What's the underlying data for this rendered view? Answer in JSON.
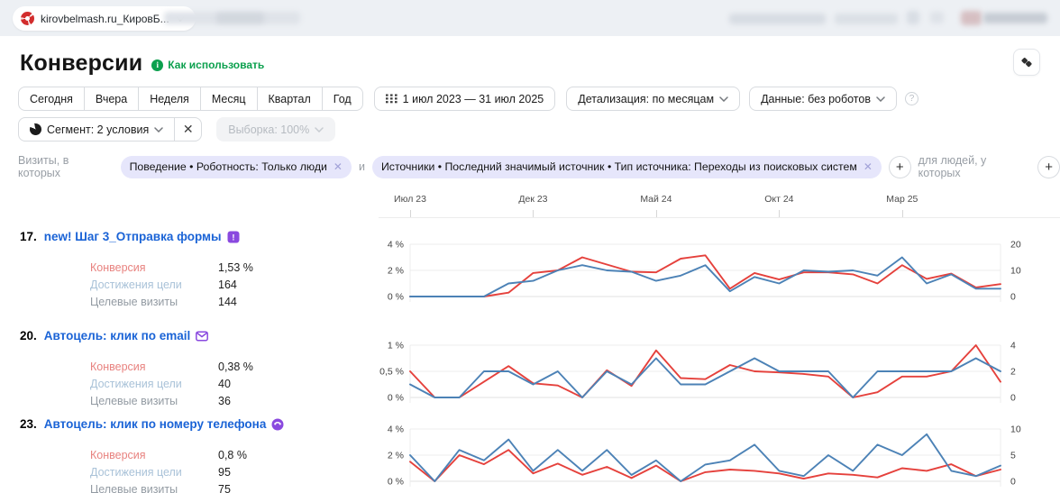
{
  "topbar": {
    "counter_label": "kirovbelmash.ru_КировБ..."
  },
  "header": {
    "title": "Конверсии",
    "help_link": "Как использовать"
  },
  "toolbar": {
    "periods": [
      "Сегодня",
      "Вчера",
      "Неделя",
      "Месяц",
      "Квартал",
      "Год"
    ],
    "date_range": "1 июл 2023 — 31 июл 2025",
    "detail_dropdown": "Детализация: по месяцам",
    "data_dropdown": "Данные: без роботов",
    "segment_button": "Сегмент: 2 условия",
    "sampling_dropdown": "Выборка: 100%"
  },
  "segments": {
    "visits_label": "Визиты, в которых",
    "and_label": "и",
    "people_label": "для людей, у которых",
    "chips": [
      "Поведение • Роботность: Только люди",
      "Источники • Последний значимый источник • Тип источника: Переходы из поисковых систем"
    ]
  },
  "x_axis": {
    "total_months": 24,
    "ticks": [
      {
        "label": "Июл 23",
        "month_index": 0
      },
      {
        "label": "Дек 23",
        "month_index": 5
      },
      {
        "label": "Май 24",
        "month_index": 10
      },
      {
        "label": "Окт 24",
        "month_index": 15
      },
      {
        "label": "Мар 25",
        "month_index": 20
      }
    ]
  },
  "rows": [
    {
      "num": "17.",
      "title": "new! Шаг 3_Отправка формы",
      "icon": "form-goal-icon",
      "metrics": [
        {
          "label": "Конверсия",
          "value": "1,53 %"
        },
        {
          "label": "Достижения цели",
          "value": "164"
        },
        {
          "label": "Целевые визиты",
          "value": "144"
        }
      ]
    },
    {
      "num": "20.",
      "title": "Автоцель: клик по email",
      "icon": "email-goal-icon",
      "metrics": [
        {
          "label": "Конверсия",
          "value": "0,38 %"
        },
        {
          "label": "Достижения цели",
          "value": "40"
        },
        {
          "label": "Целевые визиты",
          "value": "36"
        }
      ]
    },
    {
      "num": "23.",
      "title": "Автоцель: клик по номеру телефона",
      "icon": "phone-goal-icon",
      "metrics": [
        {
          "label": "Конверсия",
          "value": "0,8 %"
        },
        {
          "label": "Достижения цели",
          "value": "95"
        },
        {
          "label": "Целевые визиты",
          "value": "75"
        }
      ]
    }
  ],
  "chart_data": [
    {
      "type": "line",
      "goal": "new! Шаг 3_Отправка формы",
      "x_unit": "month",
      "x_range": "Июл 2023 — Июл 2025",
      "left_axis": {
        "name": "Конверсия, %",
        "max": 4,
        "ticks": [
          "4 %",
          "2 %",
          "0 %"
        ]
      },
      "right_axis": {
        "name": "Достижения цели",
        "max": 20,
        "ticks": [
          "20",
          "10",
          "0"
        ]
      },
      "series": [
        {
          "name": "Конверсия",
          "axis": "left",
          "color": "line_red",
          "values": [
            0,
            0,
            0,
            0,
            0.3,
            1.8,
            2.0,
            3.0,
            2.45,
            1.9,
            1.85,
            2.9,
            3.15,
            0.6,
            1.8,
            1.3,
            1.85,
            1.85,
            1.7,
            1.0,
            2.4,
            1.35,
            1.75,
            0.7,
            0.95
          ]
        },
        {
          "name": "Достижения цели",
          "axis": "right",
          "color": "line_blue",
          "values": [
            0,
            0,
            0,
            0,
            5,
            6,
            10,
            12,
            10,
            9.5,
            6,
            8,
            12,
            2,
            7.5,
            5,
            10,
            9.5,
            10,
            8,
            15,
            5,
            8.5,
            3,
            3
          ]
        }
      ]
    },
    {
      "type": "line",
      "goal": "Автоцель: клик по email",
      "x_unit": "month",
      "x_range": "Июл 2023 — Июл 2025",
      "left_axis": {
        "name": "Конверсия, %",
        "max": 1,
        "ticks": [
          "1 %",
          "0,5 %",
          "0 %"
        ]
      },
      "right_axis": {
        "name": "Достижения цели",
        "max": 4,
        "ticks": [
          "4",
          "2",
          "0"
        ]
      },
      "series": [
        {
          "name": "Конверсия",
          "axis": "left",
          "color": "line_red",
          "values": [
            0.5,
            0,
            0,
            0.3,
            0.6,
            0.27,
            0.23,
            0,
            0.52,
            0.22,
            0.9,
            0.37,
            0.35,
            0.62,
            0.5,
            0.48,
            0.45,
            0.4,
            0,
            0.1,
            0.4,
            0.4,
            0.5,
            1.0,
            0.3
          ]
        },
        {
          "name": "Достижения цели",
          "axis": "right",
          "color": "line_blue",
          "values": [
            1,
            0,
            0,
            2,
            2,
            1,
            2,
            0,
            2,
            1,
            3,
            1,
            1,
            2,
            3,
            2,
            2,
            2,
            0,
            2,
            2,
            2,
            2,
            3,
            2
          ]
        }
      ]
    },
    {
      "type": "line",
      "goal": "Автоцель: клик по номеру телефона",
      "x_unit": "month",
      "x_range": "Июл 2023 — Июл 2025",
      "left_axis": {
        "name": "Конверсия, %",
        "max": 4,
        "ticks": [
          "4 %",
          "2 %",
          "0 %"
        ]
      },
      "right_axis": {
        "name": "Достижения цели",
        "max": 10,
        "ticks": [
          "10",
          "5",
          "0"
        ]
      },
      "series": [
        {
          "name": "Конверсия",
          "axis": "left",
          "color": "line_red",
          "values": [
            1.5,
            0,
            2.0,
            1.3,
            2.4,
            0.6,
            1.35,
            0.5,
            1.1,
            0.25,
            1.2,
            0,
            0.7,
            0.9,
            0.8,
            0.6,
            0.2,
            0.6,
            0.5,
            0.3,
            1.0,
            0.8,
            1.3,
            0.4,
            0.9
          ]
        },
        {
          "name": "Достижения цели",
          "axis": "right",
          "color": "line_blue",
          "values": [
            5,
            0,
            6,
            4,
            8,
            2,
            6,
            2,
            6,
            1.2,
            4,
            0,
            3.2,
            4,
            7,
            2,
            1,
            5,
            2,
            7,
            5,
            9,
            2,
            1,
            3
          ]
        }
      ]
    }
  ],
  "colors": {
    "line_red": "#e5413c",
    "line_blue": "#4c82b6",
    "metric_conversion": "#e8827f",
    "metric_goal_reaches": "#a9c2d8",
    "metric_target_visits": "#939ba3",
    "green": "#0ca04e",
    "link_blue": "#1a63d6",
    "chip_bg": "#e6e6fb",
    "goal_icon_purple": "#8a49df"
  }
}
